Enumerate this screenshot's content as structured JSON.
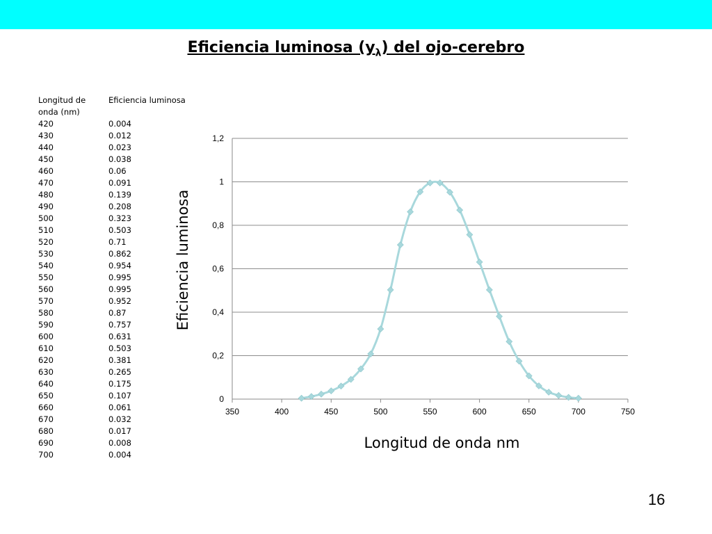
{
  "slide": {
    "title_prefix": "Eficiencia luminosa (y",
    "title_sub": "λ",
    "title_suffix": ") del ojo-cerebro",
    "page_number": "16",
    "band_color": "#00ffff"
  },
  "table": {
    "header_col1": "Longitud de onda (nm)",
    "header_col2": "Eficiencia luminosa",
    "rows": [
      [
        "420",
        "0.004"
      ],
      [
        "430",
        "0.012"
      ],
      [
        "440",
        "0.023"
      ],
      [
        "450",
        "0.038"
      ],
      [
        "460",
        "0.06"
      ],
      [
        "470",
        "0.091"
      ],
      [
        "480",
        "0.139"
      ],
      [
        "490",
        "0.208"
      ],
      [
        "500",
        "0.323"
      ],
      [
        "510",
        "0.503"
      ],
      [
        "520",
        "0.71"
      ],
      [
        "530",
        "0.862"
      ],
      [
        "540",
        "0.954"
      ],
      [
        "550",
        "0.995"
      ],
      [
        "560",
        "0.995"
      ],
      [
        "570",
        "0.952"
      ],
      [
        "580",
        "0.87"
      ],
      [
        "590",
        "0.757"
      ],
      [
        "600",
        "0.631"
      ],
      [
        "610",
        "0.503"
      ],
      [
        "620",
        "0.381"
      ],
      [
        "630",
        "0.265"
      ],
      [
        "640",
        "0.175"
      ],
      [
        "650",
        "0.107"
      ],
      [
        "660",
        "0.061"
      ],
      [
        "670",
        "0.032"
      ],
      [
        "680",
        "0.017"
      ],
      [
        "690",
        "0.008"
      ],
      [
        "700",
        "0.004"
      ]
    ]
  },
  "chart_data": {
    "type": "line",
    "xlabel": "Longitud de onda nm",
    "ylabel": "Eficiencia luminosa",
    "xlim": [
      350,
      750
    ],
    "ylim": [
      0,
      1.2
    ],
    "x_ticks": [
      350,
      400,
      450,
      500,
      550,
      600,
      650,
      700,
      750
    ],
    "y_ticks": [
      0,
      0.2,
      0.4,
      0.6,
      0.8,
      1,
      1.2
    ],
    "x_tick_labels": [
      "350",
      "400",
      "450",
      "500",
      "550",
      "600",
      "650",
      "700",
      "750"
    ],
    "y_tick_labels": [
      "0",
      "0,2",
      "0,4",
      "0,6",
      "0,8",
      "1",
      "1,2"
    ],
    "grid": true,
    "legend": "none",
    "series_color": "#a8d8dc",
    "marker": "diamond",
    "series": [
      {
        "x": [
          420,
          430,
          440,
          450,
          460,
          470,
          480,
          490,
          500,
          510,
          520,
          530,
          540,
          550,
          560,
          570,
          580,
          590,
          600,
          610,
          620,
          630,
          640,
          650,
          660,
          670,
          680,
          690,
          700
        ],
        "values": [
          0.004,
          0.012,
          0.023,
          0.038,
          0.06,
          0.091,
          0.139,
          0.208,
          0.323,
          0.503,
          0.71,
          0.862,
          0.954,
          0.995,
          0.995,
          0.952,
          0.87,
          0.757,
          0.631,
          0.503,
          0.381,
          0.265,
          0.175,
          0.107,
          0.061,
          0.032,
          0.017,
          0.008,
          0.004
        ]
      }
    ]
  }
}
